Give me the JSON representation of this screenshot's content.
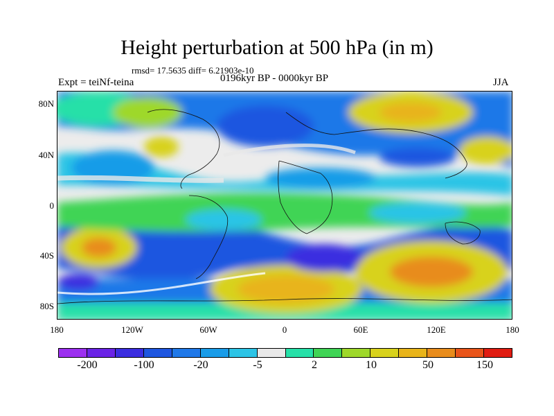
{
  "title": "Height perturbation at 500 hPa (in m)",
  "stats": "rmsd= 17.5635 diff= 6.21903e-10",
  "left_label": "Expt = teiNf-teina",
  "center_label": "0196kyr BP - 0000kyr BP",
  "right_label": "JJA",
  "lat_labels": [
    "80N",
    "40N",
    "0",
    "40S",
    "80S"
  ],
  "lon_labels": [
    "180",
    "120W",
    "60W",
    "0",
    "60E",
    "120E",
    "180"
  ],
  "colorbar_labels": [
    "-200",
    "-100",
    "-20",
    "-5",
    "2",
    "10",
    "50",
    "150"
  ],
  "colorbar_colors": [
    "#9c2ff0",
    "#6a23e6",
    "#3b2de0",
    "#1e56e0",
    "#1f78e8",
    "#199ce8",
    "#2cc4e6",
    "#e8e8e8",
    "#26e0a8",
    "#3fd455",
    "#9ed82a",
    "#d8d21c",
    "#e8b41a",
    "#e88c1c",
    "#e8541a",
    "#e01c12"
  ]
}
